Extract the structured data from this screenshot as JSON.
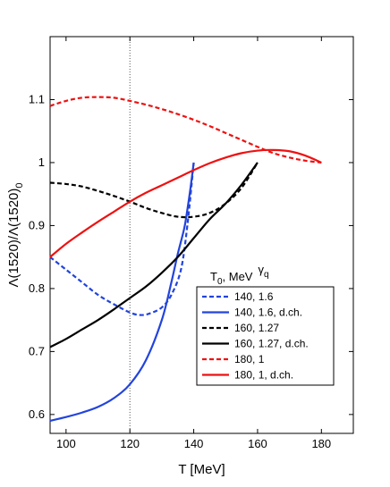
{
  "chart_data": {
    "type": "line",
    "xlabel": "T [MeV]",
    "ylabel": "Λ(1520)/Λ(1520)",
    "ylabel_sub": "0",
    "xlim": [
      95,
      190
    ],
    "ylim": [
      0.57,
      1.2
    ],
    "xticks": [
      100,
      120,
      140,
      160,
      180
    ],
    "yticks": [
      0.6,
      0.7,
      0.8,
      0.9,
      1.0,
      1.1
    ],
    "xtick_labels": [
      "100",
      "120",
      "140",
      "160",
      "180"
    ],
    "ytick_labels": [
      "0.6",
      "0.7",
      "0.8",
      "0.9",
      "1",
      "1.1"
    ],
    "vline_x": 120,
    "legend": {
      "header_t": "T",
      "header_t_sub": "0",
      "header_rest": ", MeV",
      "header_gamma": "γ",
      "header_gamma_sub": "q",
      "placement": "lower-right"
    },
    "series": [
      {
        "name": "140, 1.6",
        "color": "#2244dd",
        "dash": "dashed",
        "x": [
          95,
          100,
          105,
          110,
          115,
          120,
          123,
          126,
          130,
          133,
          136,
          138,
          140
        ],
        "y": [
          0.85,
          0.83,
          0.81,
          0.79,
          0.775,
          0.762,
          0.758,
          0.76,
          0.77,
          0.79,
          0.83,
          0.9,
          1.0
        ]
      },
      {
        "name": "140, 1.6, d.ch.",
        "color": "#2244dd",
        "dash": "solid",
        "x": [
          95,
          100,
          105,
          110,
          115,
          120,
          125,
          130,
          133,
          135,
          137,
          138,
          139,
          140
        ],
        "y": [
          0.59,
          0.596,
          0.603,
          0.612,
          0.626,
          0.648,
          0.686,
          0.75,
          0.81,
          0.855,
          0.895,
          0.925,
          0.96,
          1.0
        ]
      },
      {
        "name": "160, 1.27",
        "color": "#000000",
        "dash": "dashed",
        "x": [
          95,
          100,
          105,
          110,
          115,
          120,
          125,
          130,
          135,
          140,
          145,
          150,
          155,
          160
        ],
        "y": [
          0.968,
          0.966,
          0.962,
          0.955,
          0.947,
          0.938,
          0.928,
          0.92,
          0.914,
          0.914,
          0.92,
          0.935,
          0.96,
          1.0
        ]
      },
      {
        "name": "160, 1.27, d.ch.",
        "color": "#000000",
        "dash": "solid",
        "x": [
          95,
          100,
          105,
          110,
          115,
          120,
          125,
          130,
          135,
          140,
          145,
          150,
          155,
          160
        ],
        "y": [
          0.707,
          0.72,
          0.735,
          0.75,
          0.767,
          0.785,
          0.803,
          0.825,
          0.85,
          0.88,
          0.91,
          0.935,
          0.965,
          1.0
        ]
      },
      {
        "name": "180, 1",
        "color": "#ee1111",
        "dash": "dashed",
        "x": [
          95,
          100,
          105,
          110,
          115,
          120,
          125,
          130,
          135,
          140,
          145,
          150,
          155,
          160,
          165,
          170,
          175,
          180
        ],
        "y": [
          1.09,
          1.098,
          1.103,
          1.104,
          1.103,
          1.098,
          1.092,
          1.085,
          1.077,
          1.068,
          1.058,
          1.047,
          1.036,
          1.025,
          1.015,
          1.008,
          1.003,
          1.0
        ]
      },
      {
        "name": "180, 1, d.ch.",
        "color": "#ee1111",
        "dash": "solid",
        "x": [
          95,
          100,
          105,
          110,
          115,
          120,
          125,
          130,
          135,
          140,
          145,
          150,
          155,
          160,
          165,
          170,
          175,
          180
        ],
        "y": [
          0.85,
          0.871,
          0.889,
          0.906,
          0.922,
          0.938,
          0.952,
          0.964,
          0.976,
          0.988,
          0.999,
          1.008,
          1.015,
          1.019,
          1.02,
          1.018,
          1.011,
          1.0
        ]
      }
    ]
  }
}
